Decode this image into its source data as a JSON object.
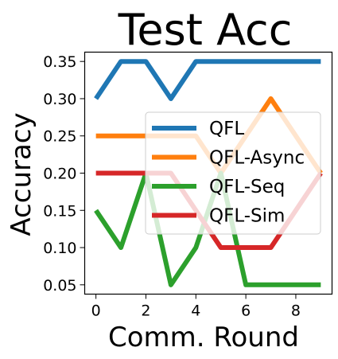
{
  "chart_data": {
    "type": "line",
    "title": "Test Acc",
    "xlabel": "Comm. Round",
    "ylabel": "Accuracy",
    "x": [
      0,
      1,
      2,
      3,
      4,
      5,
      6,
      7,
      8,
      9
    ],
    "xlim": [
      -0.45,
      9.45
    ],
    "ylim": [
      0.0375,
      0.3625
    ],
    "xticks": [
      0,
      2,
      4,
      6,
      8
    ],
    "xtick_labels": [
      "0",
      "2",
      "4",
      "6",
      "8"
    ],
    "yticks": [
      0.05,
      0.1,
      0.15,
      0.2,
      0.25,
      0.3,
      0.35
    ],
    "ytick_labels": [
      "0.05",
      "0.10",
      "0.15",
      "0.20",
      "0.25",
      "0.30",
      "0.35"
    ],
    "grid": false,
    "legend_position": "center-right",
    "series": [
      {
        "name": "QFL",
        "color": "#1f77b4",
        "values": [
          0.3,
          0.35,
          0.35,
          0.3,
          0.35,
          0.35,
          0.35,
          0.35,
          0.35,
          0.35
        ]
      },
      {
        "name": "QFL-Async",
        "color": "#ff7f0e",
        "values": [
          0.25,
          0.25,
          0.25,
          0.25,
          0.25,
          0.2,
          0.25,
          0.3,
          0.25,
          0.2
        ]
      },
      {
        "name": "QFL-Seq",
        "color": "#2ca02c",
        "values": [
          0.15,
          0.1,
          0.2,
          0.05,
          0.1,
          0.2,
          0.05,
          0.05,
          0.05,
          0.05
        ]
      },
      {
        "name": "QFL-Sim",
        "color": "#d62728",
        "values": [
          0.2,
          0.2,
          0.2,
          0.2,
          0.15,
          0.1,
          0.1,
          0.1,
          0.15,
          0.2
        ]
      }
    ]
  }
}
